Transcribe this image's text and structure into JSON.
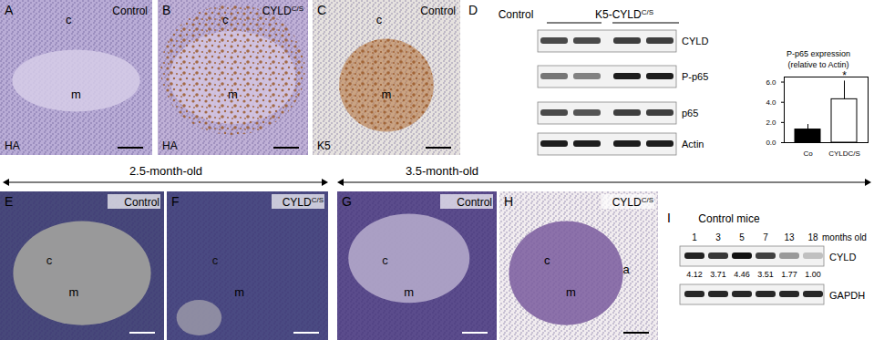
{
  "figure": {
    "row1_panels": [
      {
        "letter": "A",
        "label": {
          "text": "Control"
        },
        "stain": "HA",
        "regions": [
          "c",
          "m"
        ]
      },
      {
        "letter": "B",
        "label": {
          "text": "CYLD",
          "sup": "C/S"
        },
        "stain": "HA",
        "regions": [
          "c",
          "m"
        ]
      },
      {
        "letter": "C",
        "label": {
          "text": "Control"
        },
        "stain": "K5",
        "regions": [
          "c",
          "m"
        ]
      }
    ],
    "blot_D": {
      "letter": "D",
      "groups": [
        {
          "text": "Control"
        },
        {
          "text": "K5-CYLD",
          "sup": "C/S"
        }
      ],
      "rows": [
        "CYLD",
        "P-p65",
        "p65",
        "Actin"
      ]
    },
    "timeline": [
      {
        "text": "2.5-month-old"
      },
      {
        "text": "3.5-month-old"
      }
    ],
    "row2_panels": [
      {
        "letter": "E",
        "label": {
          "text": "Control"
        },
        "regions": [
          "c",
          "m"
        ]
      },
      {
        "letter": "F",
        "label": {
          "text": "CYLD",
          "sup": "C/S"
        },
        "regions": [
          "c",
          "m"
        ]
      },
      {
        "letter": "G",
        "label": {
          "text": "Control"
        },
        "regions": [
          "c",
          "m"
        ]
      },
      {
        "letter": "H",
        "label": {
          "text": "CYLD",
          "sup": "C/S"
        },
        "regions": [
          "c",
          "m",
          "a"
        ]
      }
    ],
    "blot_I": {
      "letter": "I",
      "title": "Control mice",
      "months": [
        1,
        3,
        5,
        7,
        13,
        18
      ],
      "months_label": "months old",
      "rows": [
        "CYLD",
        "GAPDH"
      ],
      "cyld_values": [
        4.12,
        3.71,
        4.46,
        3.51,
        1.77,
        1.0
      ],
      "cyld_value_labels": [
        "4.12",
        "3.71",
        "4.46",
        "3.51",
        "1.77",
        "1.00"
      ]
    }
  },
  "chart_data": {
    "type": "bar",
    "title": "P-p65 expression",
    "subtitle": "(relative to Actin)",
    "categories": [
      "Co",
      "CYLDC/S"
    ],
    "values": [
      1.3,
      4.3
    ],
    "errors": [
      0.5,
      1.8
    ],
    "colors": [
      "#000000",
      "#ffffff"
    ],
    "ylim": [
      0,
      6.5
    ],
    "yticks": [
      0,
      2,
      4,
      6
    ],
    "annotations": [
      {
        "text": "*",
        "category": "CYLDC/S"
      }
    ]
  }
}
